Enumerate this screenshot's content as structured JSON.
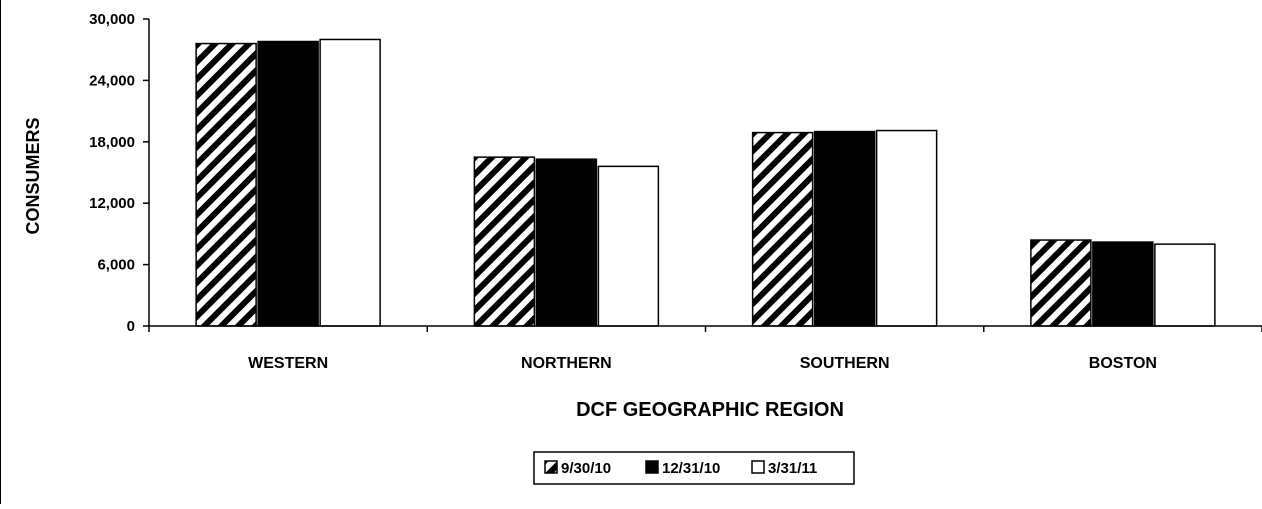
{
  "colors": {
    "frame": "#000000",
    "fill_white": "#ffffff",
    "fill_black": "#000000"
  },
  "chart_data": {
    "type": "bar",
    "xlabel": "DCF GEOGRAPHIC REGION",
    "ylabel": "CONSUMERS",
    "ylim": [
      0,
      30000
    ],
    "y_ticks": [
      0,
      6000,
      12000,
      18000,
      24000,
      30000
    ],
    "y_tick_labels": [
      "0",
      "6,000",
      "12,000",
      "18,000",
      "24,000",
      "30,000"
    ],
    "categories": [
      "WESTERN",
      "NORTHERN",
      "SOUTHERN",
      "BOSTON"
    ],
    "series": [
      {
        "name": "9/30/10",
        "pattern": "diagonal-hatch",
        "values": [
          27600,
          16500,
          18900,
          8400
        ]
      },
      {
        "name": "12/31/10",
        "pattern": "solid-black",
        "values": [
          27800,
          16300,
          19000,
          8200
        ]
      },
      {
        "name": "3/31/11",
        "pattern": "white",
        "values": [
          28000,
          15600,
          19100,
          8000
        ]
      }
    ],
    "grid": false,
    "legend_position": "bottom-center"
  }
}
